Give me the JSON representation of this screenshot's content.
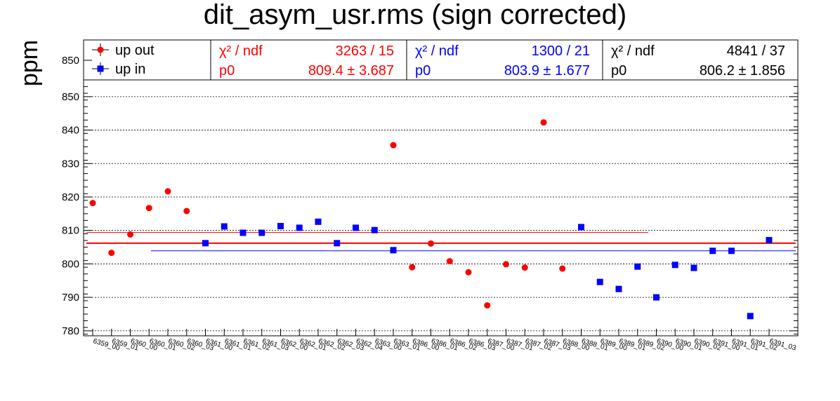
{
  "chart_data": {
    "type": "scatter",
    "title": "dit_asym_usr.rms (sign corrected)",
    "xlabel": "",
    "ylabel": "ppm",
    "ylim": [
      778.5,
      855
    ],
    "y_ticks": [
      780,
      790,
      800,
      810,
      820,
      830,
      840,
      850
    ],
    "grid_y": true,
    "categories": [
      "6359_00",
      "6359_01",
      "6360_00",
      "6360_01",
      "6360_02",
      "6360_03",
      "6361_00",
      "6361_01",
      "6361_02",
      "6361_03",
      "6362_00",
      "6362_01",
      "6362_02",
      "6362_03",
      "6362_04",
      "6363_00",
      "6363_01",
      "6386_00",
      "6386_01",
      "6386_02",
      "6386_03",
      "6387_00",
      "6387_01",
      "6387_02",
      "6387_03",
      "6388_00",
      "6388_01",
      "6389_00",
      "6389_01",
      "6389_02",
      "6390_00",
      "6390_01",
      "6390_02",
      "6391_00",
      "6391_01",
      "6391_02",
      "6391_03"
    ],
    "series": [
      {
        "name": "up out",
        "color": "#ff0000",
        "marker": "circle",
        "indices": [
          0,
          1,
          2,
          3,
          4,
          5,
          16,
          17,
          18,
          19,
          20,
          21,
          22,
          23,
          24,
          25
        ],
        "values": [
          818.2,
          803.3,
          808.8,
          816.7,
          821.7,
          815.8,
          835.5,
          799.0,
          806.1,
          800.8,
          797.5,
          787.6,
          799.9,
          798.9,
          842.3,
          798.6
        ]
      },
      {
        "name": "up in",
        "color": "#0000ff",
        "marker": "square",
        "indices": [
          6,
          7,
          8,
          9,
          10,
          11,
          12,
          13,
          14,
          15,
          16,
          26,
          27,
          28,
          29,
          30,
          31,
          32,
          33,
          34,
          35,
          36
        ],
        "values": [
          806.2,
          811.2,
          809.3,
          809.3,
          811.3,
          810.8,
          812.6,
          806.2,
          810.8,
          810.1,
          804.1,
          811.0,
          794.6,
          792.5,
          799.2,
          790.0,
          799.7,
          798.8,
          803.9,
          803.9,
          784.4,
          807.1
        ]
      }
    ],
    "fits": [
      {
        "name": "combined",
        "color": "#000000",
        "chi2_label": "χ² / ndf",
        "chi2": "4841 / 37",
        "p0_label": "p0",
        "p0": "806.2 ± 1.856",
        "value": 806.2,
        "line_color": "#ff0000"
      },
      {
        "name": "up out",
        "color": "#ff0000",
        "chi2_label": "χ² / ndf",
        "chi2": "3263 / 15",
        "p0_label": "p0",
        "p0": "809.4 ± 3.687",
        "value": 809.4
      },
      {
        "name": "up in",
        "color": "#0000ff",
        "chi2_label": "χ² / ndf",
        "chi2": "1300 / 21",
        "p0_label": "p0",
        "p0": "803.9 ± 1.677",
        "value": 803.9
      }
    ],
    "legend": [
      {
        "label": "up out",
        "color": "#ff0000",
        "marker": "circle"
      },
      {
        "label": "up in",
        "color": "#0000ff",
        "marker": "square"
      }
    ],
    "legend_position": "top"
  }
}
